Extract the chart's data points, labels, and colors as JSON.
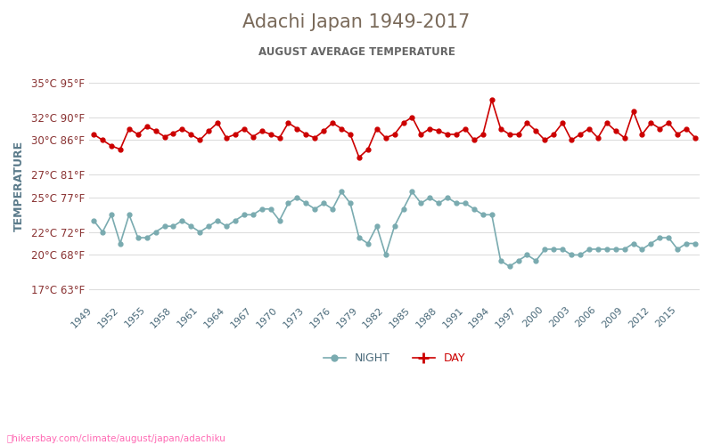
{
  "title": "Adachi Japan 1949-2017",
  "subtitle": "AUGUST AVERAGE TEMPERATURE",
  "ylabel": "TEMPERATURE",
  "footer": "hikersbay.com/climate/august/japan/adachiku",
  "title_color": "#7a6a5a",
  "subtitle_color": "#666666",
  "ylabel_color": "#5a7a8a",
  "axis_label_color": "#8a3333",
  "xtick_color": "#4a6a7a",
  "footer_color": "#ff69b4",
  "background_color": "#ffffff",
  "grid_color": "#dddddd",
  "day_color": "#cc0000",
  "night_color": "#7aabb0",
  "years": [
    1949,
    1950,
    1951,
    1952,
    1953,
    1954,
    1955,
    1956,
    1957,
    1958,
    1959,
    1960,
    1961,
    1962,
    1963,
    1964,
    1965,
    1966,
    1967,
    1968,
    1969,
    1970,
    1971,
    1972,
    1973,
    1974,
    1975,
    1976,
    1977,
    1978,
    1979,
    1980,
    1981,
    1982,
    1983,
    1984,
    1985,
    1986,
    1987,
    1988,
    1989,
    1990,
    1991,
    1992,
    1993,
    1994,
    1995,
    1996,
    1997,
    1998,
    1999,
    2000,
    2001,
    2002,
    2003,
    2004,
    2005,
    2006,
    2007,
    2008,
    2009,
    2010,
    2011,
    2012,
    2013,
    2014,
    2015,
    2016,
    2017
  ],
  "day_temps": [
    30.5,
    30.0,
    29.5,
    29.2,
    31.0,
    30.5,
    31.2,
    30.8,
    30.3,
    30.6,
    31.0,
    30.5,
    30.0,
    30.8,
    31.5,
    30.2,
    30.5,
    31.0,
    30.3,
    30.8,
    30.5,
    30.2,
    31.5,
    31.0,
    30.5,
    30.2,
    30.8,
    31.5,
    31.0,
    30.5,
    28.5,
    29.2,
    31.0,
    30.2,
    30.5,
    31.5,
    32.0,
    30.5,
    31.0,
    30.8,
    30.5,
    30.5,
    31.0,
    30.0,
    30.5,
    33.5,
    31.0,
    30.5,
    30.5,
    31.5,
    30.8,
    30.0,
    30.5,
    31.5,
    30.0,
    30.5,
    31.0,
    30.2,
    31.5,
    30.8,
    30.2,
    32.5,
    30.5,
    31.5,
    31.0,
    31.5,
    30.5,
    31.0,
    30.2
  ],
  "night_temps": [
    23.0,
    22.0,
    23.5,
    21.0,
    23.5,
    21.5,
    21.5,
    22.0,
    22.5,
    22.5,
    23.0,
    22.5,
    22.0,
    22.5,
    23.0,
    22.5,
    23.0,
    23.5,
    23.5,
    24.0,
    24.0,
    23.0,
    24.5,
    25.0,
    24.5,
    24.0,
    24.5,
    24.0,
    25.5,
    24.5,
    21.5,
    21.0,
    22.5,
    20.0,
    22.5,
    24.0,
    25.5,
    24.5,
    25.0,
    24.5,
    25.0,
    24.5,
    24.5,
    24.0,
    23.5,
    23.5,
    19.5,
    19.0,
    19.5,
    20.0,
    19.5,
    20.5,
    20.5,
    20.5,
    20.0,
    20.0,
    20.5,
    20.5,
    20.5,
    20.5,
    20.5,
    21.0,
    20.5,
    21.0,
    21.5,
    21.5,
    20.5,
    21.0,
    21.0
  ],
  "yticks_c": [
    17,
    20,
    22,
    25,
    27,
    30,
    32,
    35
  ],
  "yticks_f": [
    63,
    68,
    72,
    77,
    81,
    86,
    90,
    95
  ],
  "xticks": [
    1949,
    1952,
    1955,
    1958,
    1961,
    1964,
    1967,
    1970,
    1973,
    1976,
    1979,
    1982,
    1985,
    1988,
    1991,
    1994,
    1997,
    2000,
    2003,
    2006,
    2009,
    2012,
    2015
  ],
  "ylim": [
    16,
    36
  ],
  "xlim": [
    1948.5,
    2017.5
  ]
}
